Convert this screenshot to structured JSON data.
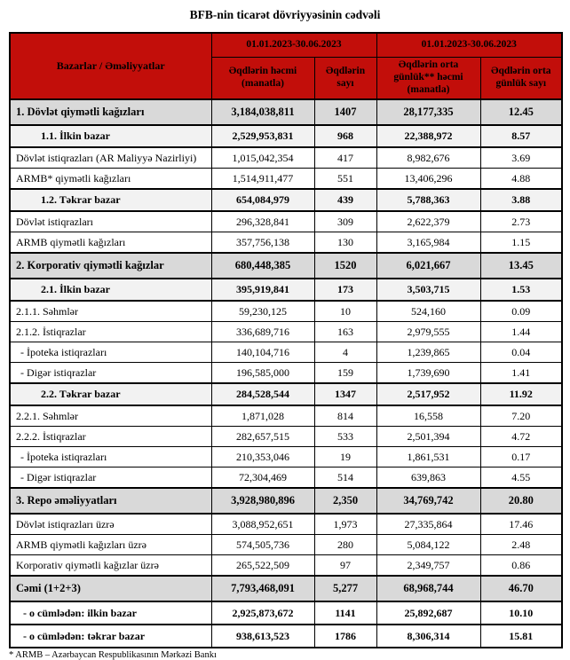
{
  "page": {
    "title": "BFB-nin ticarət dövriyyəsinin cədvəli",
    "footnote": "* ARMB – Azərbaycan Respublikasının Mərkəzi Bankı"
  },
  "colors": {
    "header_bg": "#C20E0A",
    "section_row_bg": "#D9D9D9",
    "subsection_row_bg": "#F2F2F2",
    "border": "#000000"
  },
  "table": {
    "corner_header": "Bazarlar / Əməliyyatlar",
    "period_headers": [
      "01.01.2023-30.06.2023",
      "01.01.2023-30.06.2023"
    ],
    "column_headers": [
      "Əqdlərin həcmi (manatla)",
      "Əqdlərin sayı",
      "Əqdlərin orta günlük** həcmi (manatla)",
      "Əqdlərin orta günlük sayı"
    ],
    "rows": [
      {
        "style": "section",
        "label": "1. Dövlət qiymətli kağızları",
        "values": [
          "3,184,038,811",
          "1407",
          "28,177,335",
          "12.45"
        ]
      },
      {
        "style": "subsection",
        "label": "1.1. İlkin bazar",
        "values": [
          "2,529,953,831",
          "968",
          "22,388,972",
          "8.57"
        ]
      },
      {
        "style": "normal",
        "label": "Dövlət istiqrazları (AR Maliyyə Nazirliyi)",
        "values": [
          "1,015,042,354",
          "417",
          "8,982,676",
          "3.69"
        ]
      },
      {
        "style": "normal",
        "label": "ARMB* qiymətli kağızları",
        "values": [
          "1,514,911,477",
          "551",
          "13,406,296",
          "4.88"
        ]
      },
      {
        "style": "subsection",
        "label": "1.2. Təkrar bazar",
        "values": [
          "654,084,979",
          "439",
          "5,788,363",
          "3.88"
        ]
      },
      {
        "style": "normal",
        "label": "Dövlət istiqrazları",
        "values": [
          "296,328,841",
          "309",
          "2,622,379",
          "2.73"
        ]
      },
      {
        "style": "normal",
        "label": "ARMB qiymətli kağızları",
        "values": [
          "357,756,138",
          "130",
          "3,165,984",
          "1.15"
        ]
      },
      {
        "style": "section",
        "label": "2. Korporativ qiymətli kağızlar",
        "values": [
          "680,448,385",
          "1520",
          "6,021,667",
          "13.45"
        ]
      },
      {
        "style": "subsection",
        "label": "2.1. İlkin bazar",
        "values": [
          "395,919,841",
          "173",
          "3,503,715",
          "1.53"
        ]
      },
      {
        "style": "normal",
        "label": "2.1.1. Səhmlər",
        "values": [
          "59,230,125",
          "10",
          "524,160",
          "0.09"
        ]
      },
      {
        "style": "normal",
        "label": "2.1.2. İstiqrazlar",
        "values": [
          "336,689,716",
          "163",
          "2,979,555",
          "1.44"
        ]
      },
      {
        "style": "dash",
        "label": "- İpoteka istiqrazları",
        "values": [
          "140,104,716",
          "4",
          "1,239,865",
          "0.04"
        ]
      },
      {
        "style": "dash",
        "label": "- Digər istiqrazlar",
        "values": [
          "196,585,000",
          "159",
          "1,739,690",
          "1.41"
        ]
      },
      {
        "style": "subsection",
        "label": "2.2. Təkrar bazar",
        "values": [
          "284,528,544",
          "1347",
          "2,517,952",
          "11.92"
        ]
      },
      {
        "style": "normal",
        "label": "2.2.1. Səhmlər",
        "values": [
          "1,871,028",
          "814",
          "16,558",
          "7.20"
        ]
      },
      {
        "style": "normal",
        "label": "2.2.2. İstiqrazlar",
        "values": [
          "282,657,515",
          "533",
          "2,501,394",
          "4.72"
        ]
      },
      {
        "style": "dash",
        "label": "- İpoteka istiqrazları",
        "values": [
          "210,353,046",
          "19",
          "1,861,531",
          "0.17"
        ]
      },
      {
        "style": "dash",
        "label": "- Digər istiqrazlar",
        "values": [
          "72,304,469",
          "514",
          "639,863",
          "4.55"
        ]
      },
      {
        "style": "section",
        "label": "3. Repo əməliyyatları",
        "values": [
          "3,928,980,896",
          "2,350",
          "34,769,742",
          "20.80"
        ]
      },
      {
        "style": "normal",
        "label": "Dövlət istiqrazları üzrə",
        "values": [
          "3,088,952,651",
          "1,973",
          "27,335,864",
          "17.46"
        ]
      },
      {
        "style": "normal",
        "label": "ARMB qiymətli kağızları üzrə",
        "values": [
          "574,505,736",
          "280",
          "5,084,122",
          "2.48"
        ]
      },
      {
        "style": "normal",
        "label": "Korporativ qiymətli kağızlar üzrə",
        "values": [
          "265,522,509",
          "97",
          "2,349,757",
          "0.86"
        ]
      },
      {
        "style": "total",
        "label": "Cəmi (1+2+3)",
        "values": [
          "7,793,468,091",
          "5,277",
          "68,968,744",
          "46.70"
        ]
      },
      {
        "style": "subtotal",
        "label": "- o cümlədən: ilkin bazar",
        "values": [
          "2,925,873,672",
          "1141",
          "25,892,687",
          "10.10"
        ]
      },
      {
        "style": "subtotal",
        "label": "- o cümlədən: təkrar bazar",
        "values": [
          "938,613,523",
          "1786",
          "8,306,314",
          "15.81"
        ]
      }
    ]
  }
}
